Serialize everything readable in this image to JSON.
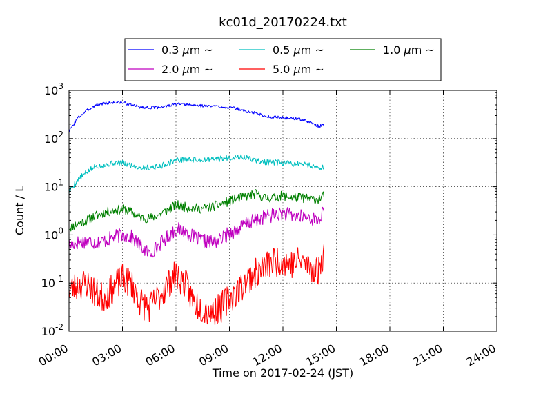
{
  "chart_data": {
    "type": "line",
    "title": "kc01d_20170224.txt",
    "xlabel": "Time on 2017-02-24 (JST)",
    "ylabel": "Count / L",
    "x_unit": "hour of day",
    "xlim": [
      0,
      24
    ],
    "ylim": [
      0.01,
      1000
    ],
    "y_scale": "log",
    "grid": true,
    "legend_placement": "top-center, above plot, 3 columns",
    "x_ticks": [
      {
        "value": 0,
        "label": "00:00"
      },
      {
        "value": 3,
        "label": "03:00"
      },
      {
        "value": 6,
        "label": "06:00"
      },
      {
        "value": 9,
        "label": "09:00"
      },
      {
        "value": 12,
        "label": "12:00"
      },
      {
        "value": 15,
        "label": "15:00"
      },
      {
        "value": 18,
        "label": "18:00"
      },
      {
        "value": 21,
        "label": "21:00"
      },
      {
        "value": 24,
        "label": "24:00"
      }
    ],
    "y_ticks": [
      {
        "value": 0.01,
        "base": "10",
        "exp": "-2"
      },
      {
        "value": 0.1,
        "base": "10",
        "exp": "-1"
      },
      {
        "value": 1,
        "base": "10",
        "exp": "0"
      },
      {
        "value": 10,
        "base": "10",
        "exp": "1"
      },
      {
        "value": 100,
        "base": "10",
        "exp": "2"
      },
      {
        "value": 1000,
        "base": "10",
        "exp": "3"
      }
    ],
    "series": [
      {
        "name": "0.3 μm ~",
        "label_num": "0.3",
        "label_unit": "μm",
        "label_suffix": "~",
        "color": "#0000ff",
        "noise": 0.03,
        "seed": 3,
        "x": [
          0,
          0.5,
          1,
          1.5,
          2,
          2.5,
          3,
          3.5,
          4,
          4.5,
          5,
          5.5,
          6,
          6.5,
          7,
          7.5,
          8,
          8.5,
          9,
          9.5,
          10,
          10.5,
          11,
          11.5,
          12,
          12.5,
          13,
          13.5,
          14,
          14.3
        ],
        "y": [
          140,
          270,
          380,
          500,
          540,
          560,
          560,
          500,
          450,
          440,
          445,
          470,
          520,
          510,
          490,
          480,
          470,
          460,
          440,
          410,
          360,
          340,
          290,
          280,
          270,
          265,
          250,
          220,
          180,
          190
        ]
      },
      {
        "name": "0.5 μm ~",
        "label_num": "0.5",
        "label_unit": "μm",
        "label_suffix": "~",
        "color": "#00bfbf",
        "noise": 0.06,
        "seed": 5,
        "x": [
          0,
          0.5,
          1,
          1.5,
          2,
          2.5,
          3,
          3.5,
          4,
          4.5,
          5,
          5.5,
          6,
          6.5,
          7,
          7.5,
          8,
          8.5,
          9,
          9.5,
          10,
          10.5,
          11,
          11.5,
          12,
          12.5,
          13,
          13.5,
          14,
          14.3
        ],
        "y": [
          8,
          14,
          20,
          27,
          28,
          31,
          31,
          28,
          25,
          25,
          26,
          30,
          36,
          37,
          36,
          36,
          37,
          38,
          40,
          41,
          40,
          35,
          32,
          32,
          31,
          30,
          30,
          28,
          25,
          26
        ]
      },
      {
        "name": "1.0 μm ~",
        "label_num": "1.0",
        "label_unit": "μm",
        "label_suffix": "~",
        "color": "#008000",
        "noise": 0.1,
        "seed": 11,
        "x": [
          0,
          0.5,
          1,
          1.5,
          2,
          2.5,
          3,
          3.5,
          4,
          4.5,
          5,
          5.5,
          6,
          6.5,
          7,
          7.5,
          8,
          8.5,
          9,
          9.5,
          10,
          10.5,
          11,
          11.5,
          12,
          12.5,
          13,
          13.5,
          14,
          14.3
        ],
        "y": [
          1.4,
          1.7,
          2.0,
          2.5,
          2.9,
          3.2,
          3.4,
          3.0,
          2.3,
          2.2,
          2.6,
          3.2,
          4.2,
          3.8,
          3.6,
          3.5,
          3.8,
          4.3,
          5.0,
          5.8,
          6.5,
          7.0,
          5.8,
          6.0,
          6.5,
          6.0,
          6.0,
          5.5,
          5.5,
          6.5
        ]
      },
      {
        "name": "2.0 μm ~",
        "label_num": "2.0",
        "label_unit": "μm",
        "label_suffix": "~",
        "color": "#bf00bf",
        "noise": 0.15,
        "seed": 17,
        "x": [
          0,
          0.5,
          1,
          1.5,
          2,
          2.5,
          3,
          3.5,
          4,
          4.5,
          5,
          5.5,
          6,
          6.5,
          7,
          7.5,
          8,
          8.5,
          9,
          9.5,
          10,
          10.5,
          11,
          11.5,
          12,
          12.5,
          13,
          13.5,
          14,
          14.3
        ],
        "y": [
          0.6,
          0.7,
          0.75,
          0.7,
          0.75,
          0.9,
          1.0,
          0.9,
          0.6,
          0.4,
          0.6,
          0.9,
          1.3,
          1.2,
          0.9,
          0.75,
          0.7,
          0.8,
          1.1,
          1.3,
          1.8,
          2.0,
          2.4,
          2.6,
          2.8,
          2.5,
          2.4,
          2.3,
          2.0,
          3.0
        ]
      },
      {
        "name": "5.0 μm ~",
        "label_num": "5.0",
        "label_unit": "μm",
        "label_suffix": "~",
        "color": "#ff0000",
        "noise": 0.32,
        "seed": 23,
        "x": [
          0,
          0.5,
          1,
          1.5,
          2,
          2.5,
          3,
          3.5,
          4,
          4.5,
          5,
          5.5,
          6,
          6.5,
          7,
          7.5,
          8,
          8.5,
          9,
          9.5,
          10,
          10.5,
          11,
          11.5,
          12,
          12.5,
          13,
          13.5,
          14,
          14.3
        ],
        "y": [
          0.07,
          0.09,
          0.1,
          0.06,
          0.05,
          0.08,
          0.12,
          0.1,
          0.04,
          0.03,
          0.05,
          0.09,
          0.15,
          0.1,
          0.04,
          0.03,
          0.025,
          0.03,
          0.05,
          0.07,
          0.12,
          0.16,
          0.22,
          0.28,
          0.3,
          0.25,
          0.3,
          0.22,
          0.18,
          0.45
        ]
      }
    ]
  }
}
